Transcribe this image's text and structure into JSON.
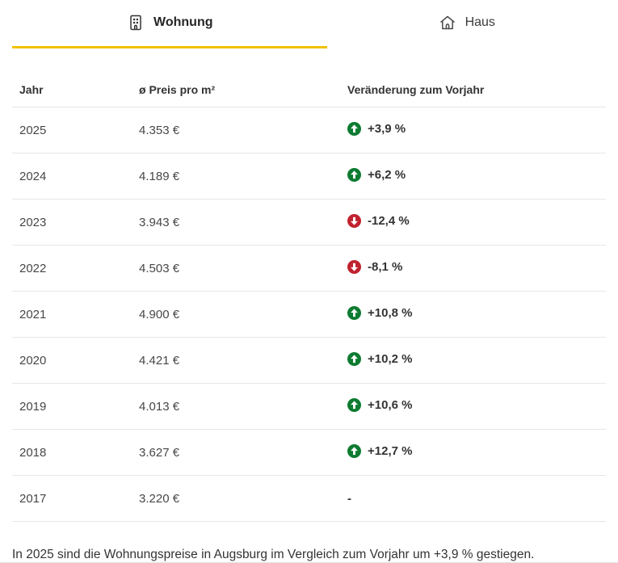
{
  "colors": {
    "accent_yellow": "#f2c100",
    "trend_up_green": "#0d7b31",
    "trend_down_red": "#c0222f",
    "divider_gray": "#e6e6e6",
    "text_dark": "#333333"
  },
  "tabs": [
    {
      "label": "Wohnung",
      "icon": "apartment-icon",
      "active": true
    },
    {
      "label": "Haus",
      "icon": "house-icon",
      "active": false
    }
  ],
  "table": {
    "headers": [
      "Jahr",
      "ø Preis pro m²",
      "Veränderung zum Vorjahr"
    ],
    "rows": [
      {
        "year": "2025",
        "price": "4.353 €",
        "change": "+3,9 %",
        "direction": "up"
      },
      {
        "year": "2024",
        "price": "4.189 €",
        "change": "+6,2 %",
        "direction": "up"
      },
      {
        "year": "2023",
        "price": "3.943 €",
        "change": "-12,4 %",
        "direction": "down"
      },
      {
        "year": "2022",
        "price": "4.503 €",
        "change": "-8,1 %",
        "direction": "down"
      },
      {
        "year": "2021",
        "price": "4.900 €",
        "change": "+10,8 %",
        "direction": "up"
      },
      {
        "year": "2020",
        "price": "4.421 €",
        "change": "+10,2 %",
        "direction": "up"
      },
      {
        "year": "2019",
        "price": "4.013 €",
        "change": "+10,6 %",
        "direction": "up"
      },
      {
        "year": "2018",
        "price": "3.627 €",
        "change": "+12,7 %",
        "direction": "up"
      },
      {
        "year": "2017",
        "price": "3.220 €",
        "change": "-",
        "direction": "none"
      }
    ]
  },
  "footer": {
    "summary": "In 2025 sind die Wohnungspreise in Augsburg im Vergleich zum Vorjahr um +3,9 % gestiegen."
  }
}
